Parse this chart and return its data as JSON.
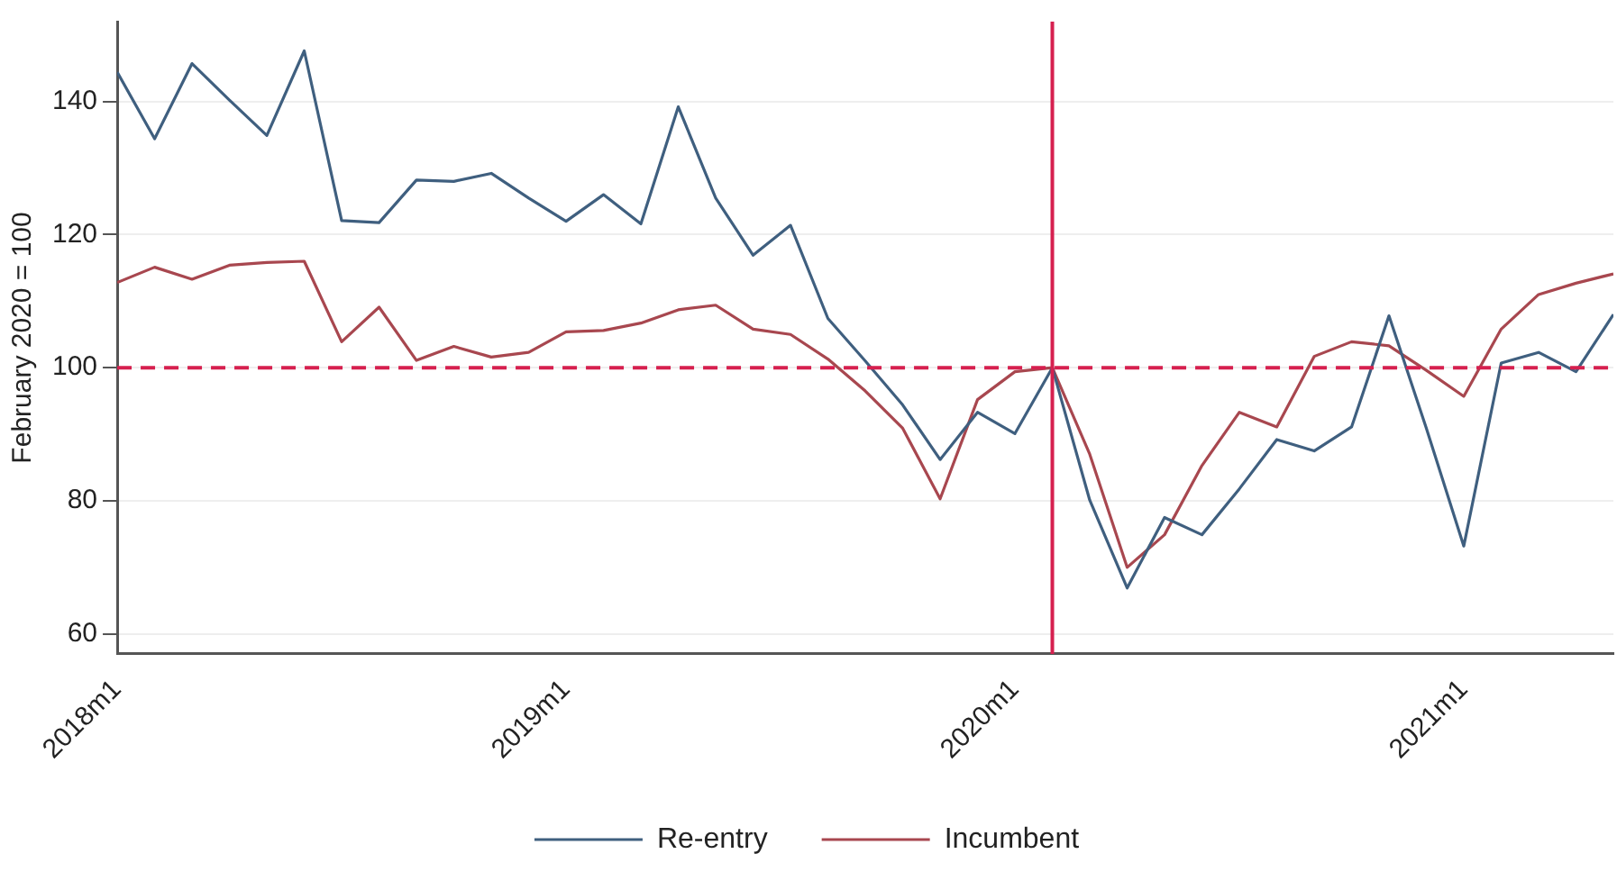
{
  "chart_data": {
    "type": "line",
    "ylabel": "February 2020 = 100",
    "x": [
      "2018-01",
      "2018-02",
      "2018-03",
      "2018-04",
      "2018-05",
      "2018-06",
      "2018-07",
      "2018-08",
      "2018-09",
      "2018-10",
      "2018-11",
      "2018-12",
      "2019-01",
      "2019-02",
      "2019-03",
      "2019-04",
      "2019-05",
      "2019-06",
      "2019-07",
      "2019-08",
      "2019-09",
      "2019-10",
      "2019-11",
      "2019-12",
      "2020-01",
      "2020-02",
      "2020-03",
      "2020-04",
      "2020-05",
      "2020-06",
      "2020-07",
      "2020-08",
      "2020-09",
      "2020-10",
      "2020-11",
      "2020-12",
      "2021-01",
      "2021-02",
      "2021-03",
      "2021-04",
      "2021-05"
    ],
    "series": [
      {
        "name": "Re-entry",
        "color": "#3f5f7f",
        "values": [
          144.4,
          134.4,
          145.7,
          140.2,
          134.9,
          147.6,
          122.1,
          121.8,
          128.2,
          128.0,
          129.2,
          125.5,
          122.0,
          126.0,
          121.6,
          139.2,
          125.5,
          116.9,
          121.4,
          107.4,
          101,
          94.4,
          86.2,
          93.3,
          90.1,
          100,
          80.1,
          66.9,
          77.5,
          74.9,
          81.8,
          89.2,
          87.5,
          91.1,
          107.8,
          90.9,
          73.2,
          100.7,
          102.3,
          99.4,
          108.0
        ]
      },
      {
        "name": "Incumbent",
        "color": "#a8474f",
        "values": [
          112.8,
          115.1,
          113.3,
          115.4,
          115.8,
          116.0,
          103.9,
          109.1,
          101.1,
          103.2,
          101.6,
          102.3,
          105.4,
          105.6,
          106.7,
          108.7,
          109.4,
          105.8,
          105.0,
          101.3,
          96.5,
          90.9,
          80.3,
          95.2,
          99.4,
          100,
          87,
          70.0,
          74.9,
          85.3,
          93.3,
          91.1,
          101.7,
          103.9,
          103.3,
          99.6,
          95.7,
          105.8,
          111.0,
          112.7,
          114.1
        ]
      }
    ],
    "xlim": [
      "2018-01",
      "2021-05"
    ],
    "xticks": [
      {
        "value": "2018-01",
        "label": "2018m1"
      },
      {
        "value": "2019-01",
        "label": "2019m1"
      },
      {
        "value": "2020-01",
        "label": "2020m1"
      },
      {
        "value": "2021-01",
        "label": "2021m1"
      }
    ],
    "ylim": [
      57,
      152
    ],
    "yticks": [
      60,
      80,
      100,
      120,
      140
    ],
    "ref_lines": [
      {
        "axis": "y",
        "value": 100,
        "color": "#d6204f",
        "line_style": "dashed"
      },
      {
        "axis": "x",
        "value": "2020-02",
        "color": "#d6204f",
        "line_style": "solid"
      }
    ],
    "grid": "y",
    "legend": "bottom",
    "marker": "none",
    "line_style": "solid"
  }
}
